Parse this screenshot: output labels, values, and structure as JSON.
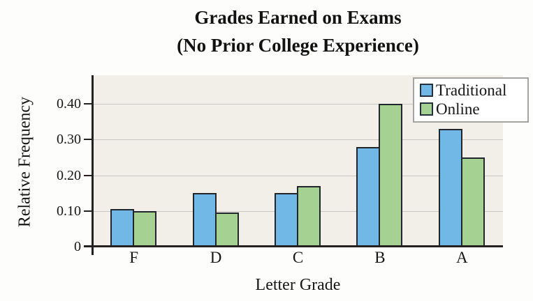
{
  "chart_data": {
    "type": "bar",
    "title_line1": "Grades Earned on Exams",
    "title_line2": "(No Prior College Experience)",
    "xlabel": "Letter Grade",
    "ylabel": "Relative Frequency",
    "categories": [
      "F",
      "D",
      "C",
      "B",
      "A"
    ],
    "series": [
      {
        "name": "Traditional",
        "color": "#72b8e6",
        "values": [
          0.105,
          0.15,
          0.15,
          0.28,
          0.33
        ]
      },
      {
        "name": "Online",
        "color": "#a5d193",
        "values": [
          0.1,
          0.095,
          0.17,
          0.4,
          0.25
        ]
      }
    ],
    "y_ticks": [
      {
        "value": 0.0,
        "label": "0"
      },
      {
        "value": 0.1,
        "label": "0.10"
      },
      {
        "value": 0.2,
        "label": "0.20"
      },
      {
        "value": 0.3,
        "label": "0.30"
      },
      {
        "value": 0.4,
        "label": "0.40"
      }
    ],
    "ylim": [
      0,
      0.48
    ],
    "grid": true,
    "legend_position": "top-right",
    "colors": {
      "plot_background": "#f2efe8",
      "gridline": "#c7c6c2",
      "axis": "#242021",
      "bar_border": "#20262b",
      "legend_border": "#a3a3a0",
      "text": "#161616"
    }
  }
}
